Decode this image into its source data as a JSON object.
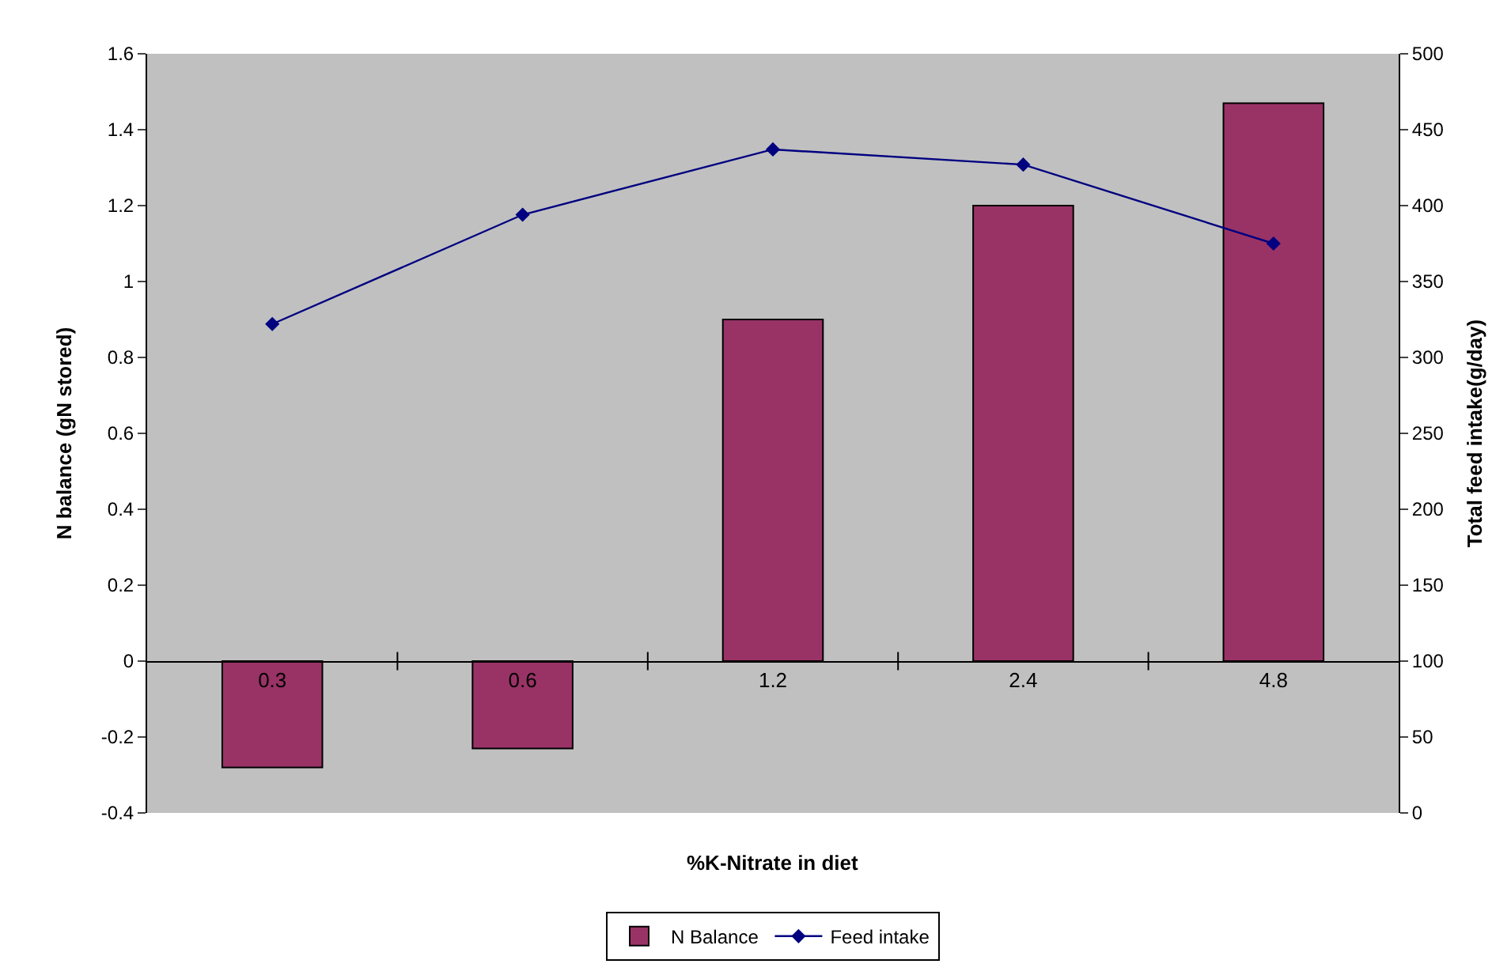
{
  "chart_data": {
    "type": "bar",
    "xlabel": "%K-Nitrate in diet",
    "ylabel": "N balance (gN stored)",
    "y2label": "Total feed intake(g/day)",
    "categories": [
      "0.3",
      "0.6",
      "1.2",
      "2.4",
      "4.8"
    ],
    "series": [
      {
        "name": "N Balance",
        "color": "#993366",
        "values": [
          -0.28,
          -0.23,
          0.9,
          1.2,
          1.47
        ]
      },
      {
        "name": "Feed intake",
        "type": "line",
        "axis": "y2",
        "color": "#000080",
        "marker": "diamond",
        "values": [
          322,
          394,
          437,
          427,
          375
        ]
      }
    ],
    "ylim": [
      -0.4,
      1.6
    ],
    "yticks": [
      -0.4,
      -0.2,
      0,
      0.2,
      0.4,
      0.6,
      0.8,
      1,
      1.2,
      1.4,
      1.6
    ],
    "y2lim": [
      0,
      500
    ],
    "y2ticks": [
      0,
      50,
      100,
      150,
      200,
      250,
      300,
      350,
      400,
      450,
      500
    ],
    "grid": false,
    "legend": "bottom"
  }
}
